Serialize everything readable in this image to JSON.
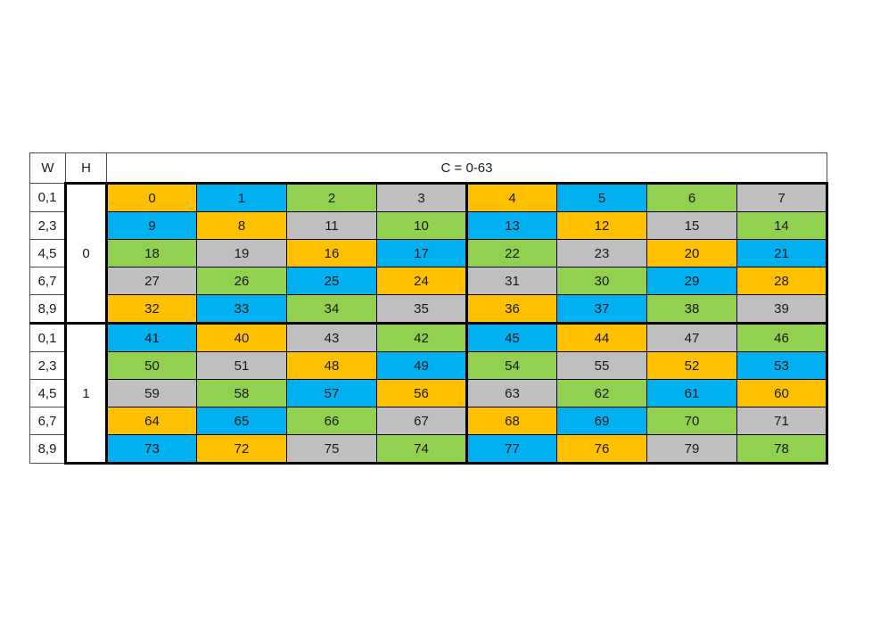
{
  "chart_data": {
    "type": "table",
    "header": {
      "w_label": "W",
      "h_label": "H",
      "c_label": "C = 0-63"
    },
    "cell_colors": {
      "orange": "#FFC000",
      "blue": "#00B0F0",
      "green": "#92D050",
      "gray": "#BFBFBF"
    },
    "blocks": [
      {
        "h_value": "0",
        "rows": [
          {
            "w_label": "0,1",
            "cells": [
              {
                "v": "0",
                "c": "orange"
              },
              {
                "v": "1",
                "c": "blue"
              },
              {
                "v": "2",
                "c": "green"
              },
              {
                "v": "3",
                "c": "gray"
              },
              {
                "v": "4",
                "c": "orange"
              },
              {
                "v": "5",
                "c": "blue"
              },
              {
                "v": "6",
                "c": "green"
              },
              {
                "v": "7",
                "c": "gray"
              }
            ]
          },
          {
            "w_label": "2,3",
            "cells": [
              {
                "v": "9",
                "c": "blue"
              },
              {
                "v": "8",
                "c": "orange"
              },
              {
                "v": "11",
                "c": "gray"
              },
              {
                "v": "10",
                "c": "green"
              },
              {
                "v": "13",
                "c": "blue"
              },
              {
                "v": "12",
                "c": "orange"
              },
              {
                "v": "15",
                "c": "gray"
              },
              {
                "v": "14",
                "c": "green"
              }
            ]
          },
          {
            "w_label": "4,5",
            "cells": [
              {
                "v": "18",
                "c": "green"
              },
              {
                "v": "19",
                "c": "gray"
              },
              {
                "v": "16",
                "c": "orange"
              },
              {
                "v": "17",
                "c": "blue"
              },
              {
                "v": "22",
                "c": "green"
              },
              {
                "v": "23",
                "c": "gray"
              },
              {
                "v": "20",
                "c": "orange"
              },
              {
                "v": "21",
                "c": "blue"
              }
            ]
          },
          {
            "w_label": "6,7",
            "cells": [
              {
                "v": "27",
                "c": "gray"
              },
              {
                "v": "26",
                "c": "green"
              },
              {
                "v": "25",
                "c": "blue"
              },
              {
                "v": "24",
                "c": "orange"
              },
              {
                "v": "31",
                "c": "gray"
              },
              {
                "v": "30",
                "c": "green"
              },
              {
                "v": "29",
                "c": "blue"
              },
              {
                "v": "28",
                "c": "orange"
              }
            ]
          },
          {
            "w_label": "8,9",
            "cells": [
              {
                "v": "32",
                "c": "orange"
              },
              {
                "v": "33",
                "c": "blue"
              },
              {
                "v": "34",
                "c": "green"
              },
              {
                "v": "35",
                "c": "gray"
              },
              {
                "v": "36",
                "c": "orange"
              },
              {
                "v": "37",
                "c": "blue"
              },
              {
                "v": "38",
                "c": "green"
              },
              {
                "v": "39",
                "c": "gray"
              }
            ]
          }
        ]
      },
      {
        "h_value": "1",
        "rows": [
          {
            "w_label": "0,1",
            "cells": [
              {
                "v": "41",
                "c": "blue"
              },
              {
                "v": "40",
                "c": "orange"
              },
              {
                "v": "43",
                "c": "gray"
              },
              {
                "v": "42",
                "c": "green"
              },
              {
                "v": "45",
                "c": "blue"
              },
              {
                "v": "44",
                "c": "orange"
              },
              {
                "v": "47",
                "c": "gray"
              },
              {
                "v": "46",
                "c": "green"
              }
            ]
          },
          {
            "w_label": "2,3",
            "cells": [
              {
                "v": "50",
                "c": "green"
              },
              {
                "v": "51",
                "c": "gray"
              },
              {
                "v": "48",
                "c": "orange"
              },
              {
                "v": "49",
                "c": "blue"
              },
              {
                "v": "54",
                "c": "green"
              },
              {
                "v": "55",
                "c": "gray"
              },
              {
                "v": "52",
                "c": "orange"
              },
              {
                "v": "53",
                "c": "blue"
              }
            ]
          },
          {
            "w_label": "4,5",
            "cells": [
              {
                "v": "59",
                "c": "gray"
              },
              {
                "v": "58",
                "c": "green"
              },
              {
                "v": "57",
                "c": "blue"
              },
              {
                "v": "56",
                "c": "orange"
              },
              {
                "v": "63",
                "c": "gray"
              },
              {
                "v": "62",
                "c": "green"
              },
              {
                "v": "61",
                "c": "blue"
              },
              {
                "v": "60",
                "c": "orange"
              }
            ]
          },
          {
            "w_label": "6,7",
            "cells": [
              {
                "v": "64",
                "c": "orange"
              },
              {
                "v": "65",
                "c": "blue"
              },
              {
                "v": "66",
                "c": "green"
              },
              {
                "v": "67",
                "c": "gray"
              },
              {
                "v": "68",
                "c": "orange"
              },
              {
                "v": "69",
                "c": "blue"
              },
              {
                "v": "70",
                "c": "green"
              },
              {
                "v": "71",
                "c": "gray"
              }
            ]
          },
          {
            "w_label": "8,9",
            "cells": [
              {
                "v": "73",
                "c": "blue"
              },
              {
                "v": "72",
                "c": "orange"
              },
              {
                "v": "75",
                "c": "gray"
              },
              {
                "v": "74",
                "c": "green"
              },
              {
                "v": "77",
                "c": "blue"
              },
              {
                "v": "76",
                "c": "orange"
              },
              {
                "v": "79",
                "c": "gray"
              },
              {
                "v": "78",
                "c": "green"
              }
            ]
          }
        ]
      }
    ]
  }
}
